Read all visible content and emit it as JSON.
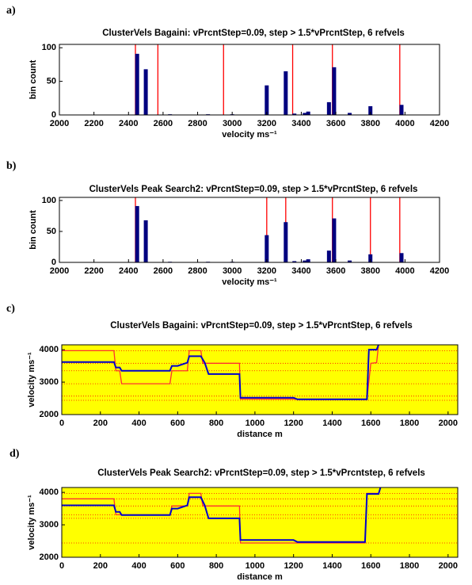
{
  "chart_data": [
    {
      "type": "bar",
      "panel_label": "a)",
      "title": "ClusterVels Bagaini: vPrcntStep=0.09, step > 1.5*vPrcntStep, 6 refvels",
      "xlabel": "velocity ms⁻¹",
      "ylabel": "bin count",
      "xlim": [
        2000,
        4200
      ],
      "xticks": [
        2000,
        2200,
        2400,
        2600,
        2800,
        3000,
        3200,
        3400,
        3600,
        3800,
        4000,
        4200
      ],
      "ylim": [
        0,
        105
      ],
      "yticks": [
        0,
        50,
        100
      ],
      "bars": {
        "color": "#00007f",
        "x": [
          2450,
          2500,
          2640,
          2860,
          3000,
          3200,
          3310,
          3360,
          3420,
          3440,
          3560,
          3590,
          3680,
          3800,
          3980
        ],
        "values": [
          91,
          68,
          1,
          1,
          1,
          44,
          65,
          2,
          3,
          5,
          19,
          71,
          3,
          13,
          15
        ]
      },
      "reference_lines": {
        "color": "#ff0000",
        "x": [
          2440,
          2570,
          2950,
          3350,
          3580,
          3970
        ]
      }
    },
    {
      "type": "bar",
      "panel_label": "b)",
      "title": "ClusterVels Peak Search2: vPrcntStep=0.09, step > 1.5*vPrcntStep, 6 refvels",
      "xlabel": "velocity ms⁻¹",
      "ylabel": "bin count",
      "xlim": [
        2000,
        4200
      ],
      "xticks": [
        2000,
        2200,
        2400,
        2600,
        2800,
        3000,
        3200,
        3400,
        3600,
        3800,
        4000,
        4200
      ],
      "ylim": [
        0,
        105
      ],
      "yticks": [
        0,
        50,
        100
      ],
      "bars": {
        "color": "#00007f",
        "x": [
          2450,
          2500,
          2640,
          2860,
          3000,
          3200,
          3310,
          3360,
          3420,
          3440,
          3560,
          3590,
          3680,
          3800,
          3980
        ],
        "values": [
          91,
          68,
          1,
          1,
          1,
          44,
          65,
          2,
          3,
          5,
          19,
          71,
          3,
          13,
          15
        ]
      },
      "reference_lines": {
        "color": "#ff0000",
        "x": [
          2440,
          3200,
          3310,
          3580,
          3800,
          3970
        ]
      }
    },
    {
      "type": "line",
      "panel_label": "c)",
      "title": "ClusterVels Bagaini: vPrcntStep=0.09, step > 1.5*vPrcntStep, 6 refvels",
      "xlabel": "distance m",
      "ylabel": "velocity ms⁻¹",
      "background": "#ffff00",
      "xlim": [
        0,
        2050
      ],
      "xticks": [
        0,
        200,
        400,
        600,
        800,
        1000,
        1200,
        1400,
        1600,
        1800,
        2000
      ],
      "ylim": [
        2000,
        4150
      ],
      "yticks": [
        2000,
        3000,
        4000
      ],
      "reference_lines": {
        "color": "#ff0000",
        "values": [
          2440,
          2570,
          2950,
          3350,
          3580,
          3970
        ]
      },
      "series": [
        {
          "color": "#ff3030",
          "x": [
            0,
            270,
            280,
            300,
            310,
            560,
            570,
            650,
            660,
            720,
            730,
            920,
            925,
            1200,
            1220,
            1580,
            1600,
            1630,
            1640
          ],
          "values": [
            3970,
            3970,
            3350,
            3350,
            2950,
            2950,
            3350,
            3350,
            3970,
            3970,
            3580,
            3580,
            2480,
            2480,
            2470,
            2470,
            3580,
            3600,
            4150
          ]
        },
        {
          "color": "#0000cc",
          "x": [
            0,
            270,
            280,
            300,
            310,
            560,
            570,
            600,
            650,
            660,
            720,
            740,
            760,
            920,
            925,
            1200,
            1220,
            1580,
            1590,
            1630,
            1640
          ],
          "values": [
            3620,
            3620,
            3450,
            3450,
            3350,
            3350,
            3500,
            3500,
            3600,
            3800,
            3800,
            3600,
            3250,
            3250,
            2520,
            2520,
            2470,
            2470,
            4000,
            4000,
            4150
          ]
        }
      ]
    },
    {
      "type": "line",
      "panel_label": "d)",
      "title": "ClusterVels Peak Search2: vPrcntStep=0.09, step > 1.5*vPrcntstep, 6 refvels",
      "xlabel": "distance m",
      "ylabel": "velocity ms⁻¹",
      "background": "#ffff00",
      "xlim": [
        0,
        2050
      ],
      "xticks": [
        0,
        200,
        400,
        600,
        800,
        1000,
        1200,
        1400,
        1600,
        1800,
        2000
      ],
      "ylim": [
        2000,
        4150
      ],
      "yticks": [
        2000,
        3000,
        4000
      ],
      "reference_lines": {
        "color": "#ff0000",
        "values": [
          2440,
          3200,
          3310,
          3580,
          3800,
          3970
        ]
      },
      "series": [
        {
          "color": "#ff3030",
          "x": [
            0,
            270,
            280,
            560,
            570,
            650,
            660,
            720,
            730,
            920,
            925,
            1200,
            1220,
            1570,
            1580,
            1640
          ],
          "values": [
            3800,
            3800,
            3310,
            3310,
            3580,
            3580,
            3970,
            3970,
            3580,
            3580,
            2440,
            2440,
            2440,
            2440,
            3970,
            3970
          ]
        },
        {
          "color": "#0000cc",
          "x": [
            0,
            270,
            280,
            300,
            310,
            560,
            570,
            600,
            650,
            660,
            720,
            740,
            760,
            920,
            925,
            1200,
            1220,
            1570,
            1580,
            1640,
            1650
          ],
          "values": [
            3600,
            3600,
            3400,
            3400,
            3300,
            3300,
            3500,
            3500,
            3600,
            3850,
            3850,
            3600,
            3200,
            3200,
            2530,
            2530,
            2470,
            2470,
            3950,
            3950,
            4150
          ]
        }
      ]
    }
  ]
}
